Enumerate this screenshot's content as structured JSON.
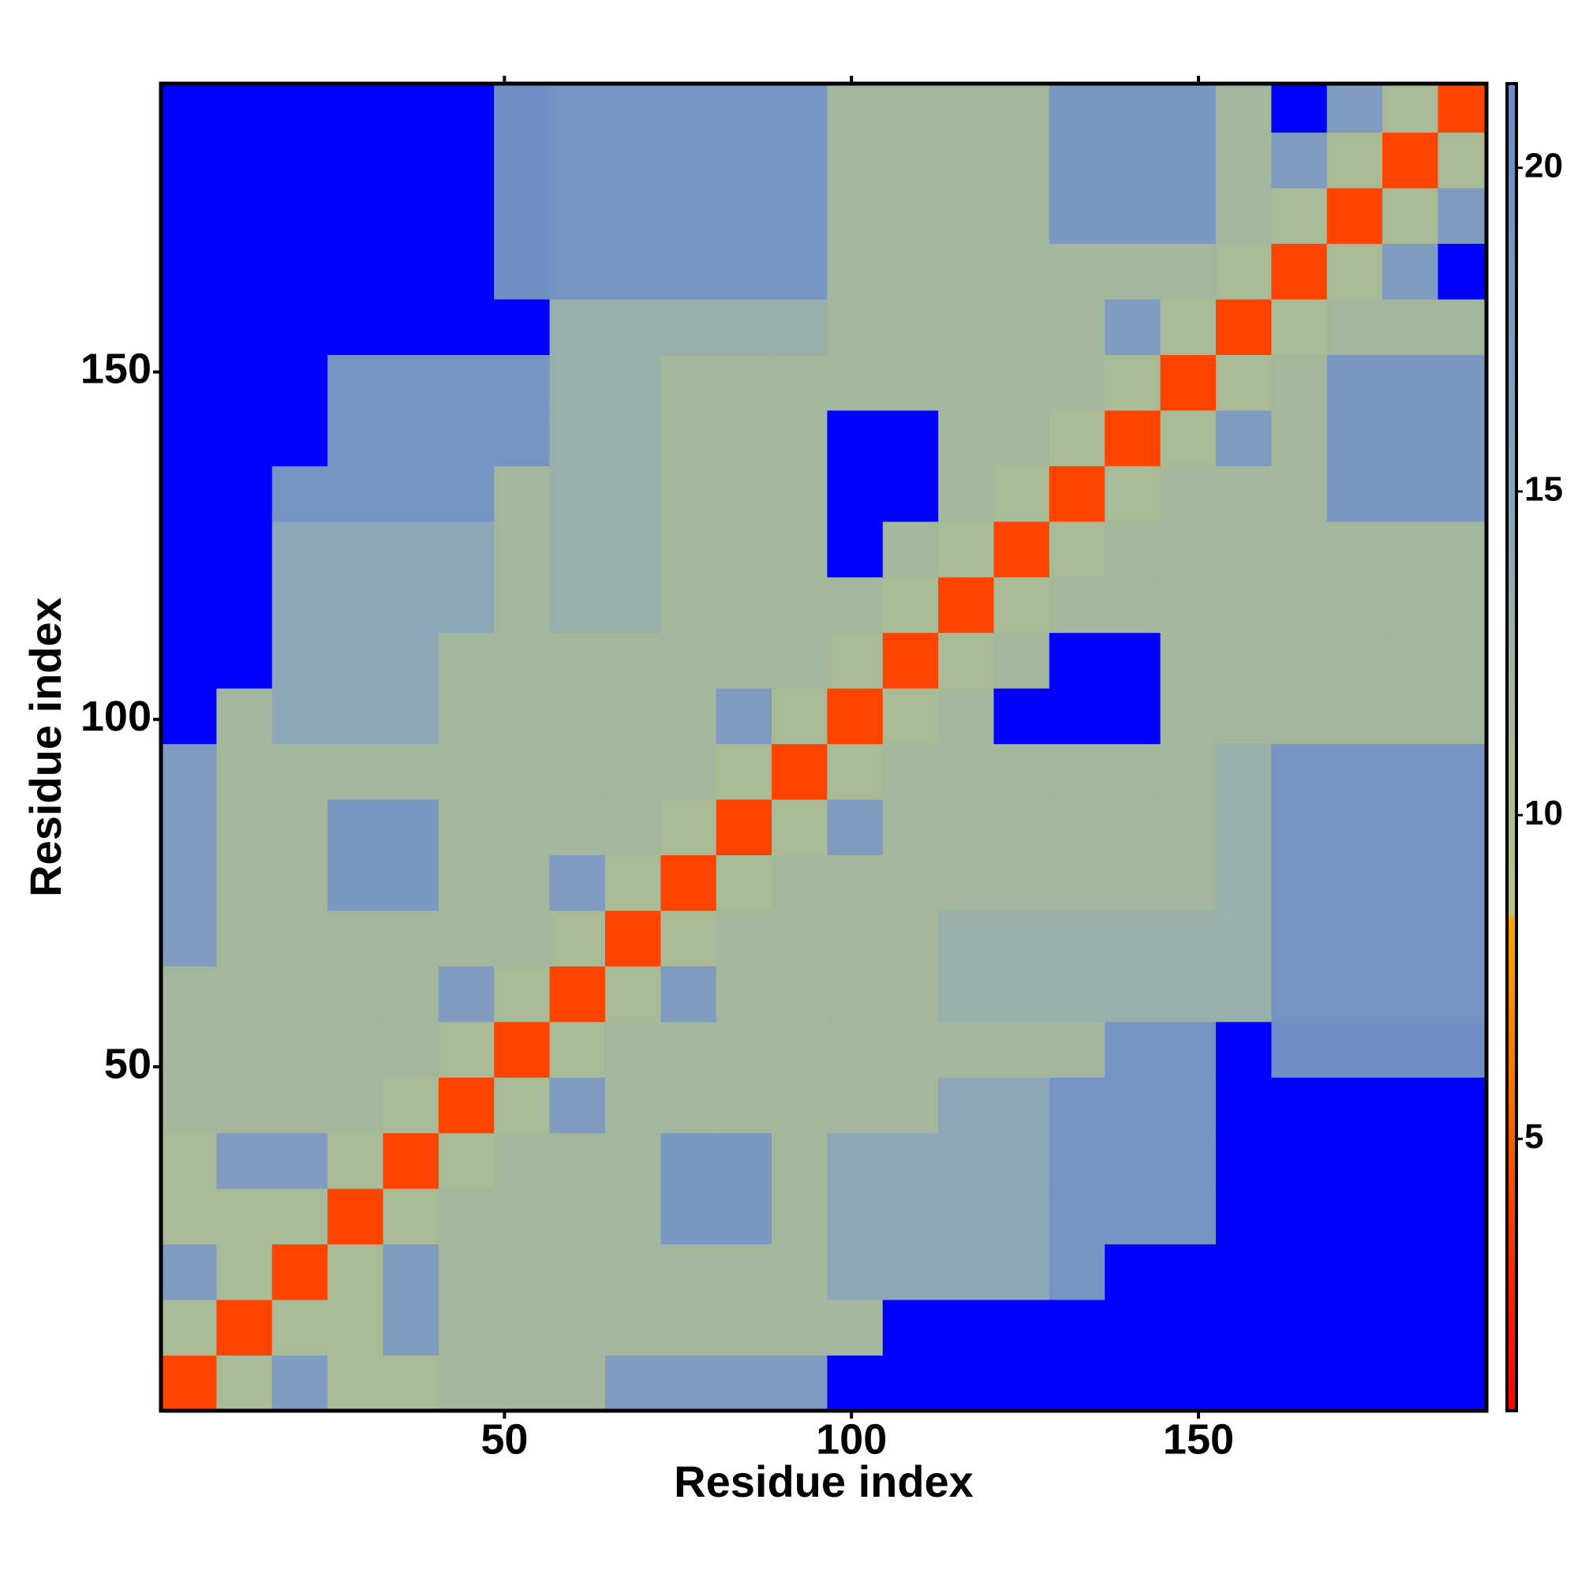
{
  "chart_data": {
    "type": "heatmap",
    "x_label": "Residue index",
    "y_label": "Residue index",
    "x": [
      4.5,
      12.5,
      20.5,
      28.5,
      36.5,
      44.5,
      52.5,
      60.5,
      68.5,
      76.5,
      84.5,
      92.5,
      100.5,
      108.5,
      116.5,
      124.5,
      132.5,
      140.5,
      148.5,
      156.5,
      164.5,
      172.5,
      180.5,
      188.5
    ],
    "y": [
      4.5,
      12.5,
      20.5,
      28.5,
      36.5,
      44.5,
      52.5,
      60.5,
      68.5,
      76.5,
      84.5,
      92.5,
      100.5,
      108.5,
      116.5,
      124.5,
      132.5,
      140.5,
      148.5,
      156.5,
      164.5,
      172.5,
      180.5,
      188.5
    ],
    "z": [
      [
        4,
        11,
        17,
        11,
        11,
        12,
        12,
        12,
        17,
        17,
        17,
        17,
        25,
        25,
        25,
        25,
        25,
        25,
        25,
        25,
        25,
        25,
        25,
        25
      ],
      [
        11,
        4,
        11,
        11,
        17,
        12,
        12,
        12,
        12,
        12,
        12,
        12,
        12,
        25,
        25,
        25,
        25,
        25,
        25,
        25,
        25,
        25,
        25,
        25
      ],
      [
        17,
        11,
        4,
        11,
        17,
        12,
        12,
        12,
        12,
        12,
        12,
        12,
        14,
        14,
        14,
        14,
        19,
        25,
        25,
        25,
        25,
        25,
        25,
        25
      ],
      [
        11,
        11,
        11,
        4,
        11,
        12,
        12,
        12,
        12,
        18,
        18,
        12,
        14,
        14,
        14,
        14,
        19,
        19,
        19,
        25,
        25,
        25,
        25,
        25
      ],
      [
        11,
        17,
        17,
        11,
        4,
        11,
        12,
        12,
        12,
        18,
        18,
        12,
        14,
        14,
        14,
        14,
        19,
        19,
        19,
        25,
        25,
        25,
        25,
        25
      ],
      [
        12,
        12,
        12,
        12,
        11,
        4,
        11,
        17,
        12,
        12,
        12,
        12,
        12,
        12,
        14,
        14,
        19,
        19,
        19,
        25,
        25,
        25,
        25,
        25
      ],
      [
        12,
        12,
        12,
        12,
        12,
        11,
        4,
        11,
        12,
        12,
        12,
        12,
        12,
        12,
        12,
        12,
        12,
        19,
        19,
        25,
        20,
        20,
        20,
        20
      ],
      [
        12,
        12,
        12,
        12,
        12,
        17,
        11,
        4,
        11,
        17,
        12,
        12,
        12,
        12,
        13,
        13,
        13,
        13,
        13,
        13,
        19,
        19,
        19,
        19
      ],
      [
        17,
        12,
        12,
        12,
        12,
        12,
        12,
        11,
        4,
        11,
        12,
        12,
        12,
        12,
        13,
        13,
        13,
        13,
        13,
        13,
        19,
        19,
        19,
        19
      ],
      [
        17,
        12,
        12,
        18,
        18,
        12,
        12,
        17,
        11,
        4,
        11,
        12,
        12,
        12,
        12,
        12,
        12,
        12,
        12,
        13,
        19,
        19,
        19,
        19
      ],
      [
        17,
        12,
        12,
        18,
        18,
        12,
        12,
        12,
        12,
        11,
        4,
        11,
        17,
        12,
        12,
        12,
        12,
        12,
        12,
        13,
        19,
        19,
        19,
        19
      ],
      [
        17,
        12,
        12,
        12,
        12,
        12,
        12,
        12,
        12,
        12,
        11,
        4,
        11,
        12,
        12,
        12,
        12,
        12,
        12,
        13,
        19,
        19,
        19,
        19
      ],
      [
        25,
        12,
        14,
        14,
        14,
        12,
        12,
        12,
        12,
        12,
        17,
        11,
        4,
        11,
        12,
        25,
        25,
        25,
        12,
        12,
        12,
        12,
        12,
        12
      ],
      [
        25,
        25,
        14,
        14,
        14,
        12,
        12,
        12,
        12,
        12,
        12,
        12,
        11,
        4,
        11,
        12,
        25,
        25,
        12,
        12,
        12,
        12,
        12,
        12
      ],
      [
        25,
        25,
        14,
        14,
        14,
        14,
        12,
        13,
        13,
        12,
        12,
        12,
        12,
        11,
        4,
        11,
        12,
        12,
        12,
        12,
        12,
        12,
        12,
        12
      ],
      [
        25,
        25,
        14,
        14,
        14,
        14,
        12,
        13,
        13,
        12,
        12,
        12,
        25,
        12,
        11,
        4,
        11,
        12,
        12,
        12,
        12,
        12,
        12,
        12
      ],
      [
        25,
        25,
        19,
        19,
        19,
        19,
        12,
        13,
        13,
        12,
        12,
        12,
        25,
        25,
        12,
        11,
        4,
        11,
        12,
        12,
        12,
        18,
        18,
        18
      ],
      [
        25,
        25,
        25,
        19,
        19,
        19,
        19,
        13,
        13,
        12,
        12,
        12,
        25,
        25,
        12,
        12,
        11,
        4,
        11,
        17,
        12,
        18,
        18,
        18
      ],
      [
        25,
        25,
        25,
        19,
        19,
        19,
        19,
        13,
        13,
        12,
        12,
        12,
        12,
        12,
        12,
        12,
        12,
        11,
        4,
        11,
        12,
        18,
        18,
        18
      ],
      [
        25,
        25,
        25,
        25,
        25,
        25,
        25,
        13,
        13,
        13,
        13,
        13,
        12,
        12,
        12,
        12,
        12,
        17,
        11,
        4,
        11,
        12,
        12,
        12
      ],
      [
        25,
        25,
        25,
        25,
        25,
        25,
        20,
        19,
        19,
        19,
        19,
        19,
        12,
        12,
        12,
        12,
        12,
        12,
        12,
        11,
        4,
        11,
        17,
        25
      ],
      [
        25,
        25,
        25,
        25,
        25,
        25,
        20,
        19,
        19,
        19,
        19,
        19,
        12,
        12,
        12,
        12,
        18,
        18,
        18,
        12,
        11,
        4,
        11,
        17
      ],
      [
        25,
        25,
        25,
        25,
        25,
        25,
        20,
        19,
        19,
        19,
        19,
        19,
        12,
        12,
        12,
        12,
        18,
        18,
        18,
        12,
        17,
        11,
        4,
        11
      ],
      [
        25,
        25,
        25,
        25,
        25,
        25,
        20,
        19,
        19,
        19,
        19,
        19,
        12,
        12,
        12,
        12,
        18,
        18,
        18,
        12,
        25,
        17,
        11,
        4
      ]
    ],
    "xlim": [
      0.5,
      191.5
    ],
    "ylim": [
      0.5,
      191.5
    ],
    "xticks": [
      50,
      100,
      150
    ],
    "yticks": [
      50,
      100,
      150
    ],
    "clim": [
      0.8,
      21.3
    ],
    "cticks": [
      5,
      10,
      15,
      20
    ],
    "colorscale": [
      {
        "value": 0.8,
        "color": "#ff0000"
      },
      {
        "value": 3,
        "color": "#ff2a00"
      },
      {
        "value": 5.5,
        "color": "#ff6a00"
      },
      {
        "value": 8.4,
        "color": "#ffa500"
      },
      {
        "value": 8.5,
        "color": "#b7c28a"
      },
      {
        "value": 12,
        "color": "#a3b79c"
      },
      {
        "value": 14,
        "color": "#8da7b8"
      },
      {
        "value": 21.3,
        "color": "#6a8bc8"
      }
    ],
    "over_color": "#0000ff"
  }
}
